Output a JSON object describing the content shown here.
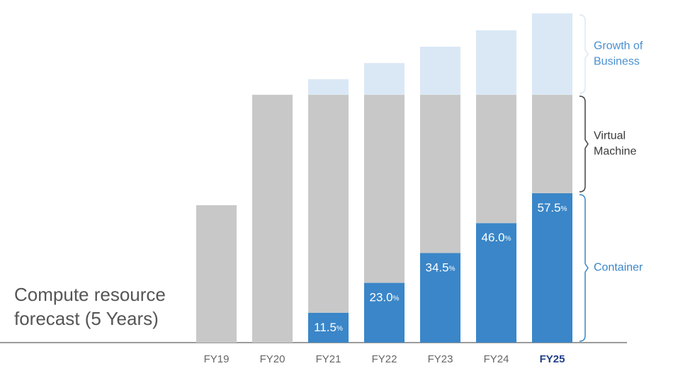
{
  "chart_data": {
    "type": "stacked_bar",
    "title": "Compute resource forecast (5 Years)",
    "categories": [
      "FY19",
      "FY20",
      "FY21",
      "FY22",
      "FY23",
      "FY24",
      "FY25"
    ],
    "series": [
      {
        "name": "Container",
        "color": "#3a86c8",
        "label_color": "#3a86c8",
        "values": [
          0,
          0,
          11.5,
          23.0,
          34.5,
          46.0,
          57.5
        ],
        "value_labels": [
          null,
          null,
          "11.5%",
          "23.0%",
          "34.5%",
          "46.0%",
          "57.5%"
        ]
      },
      {
        "name": "Virtual Machine",
        "color": "#c8c8c8",
        "label_color": "#3a3a3a",
        "values": [
          52.9,
          95.4,
          83.9,
          72.4,
          60.9,
          49.4,
          37.9
        ]
      },
      {
        "name": "Growth of Business",
        "color": "#dae8f5",
        "label_color": "#4a90d0",
        "values": [
          0,
          0,
          6.0,
          12.2,
          18.5,
          24.8,
          31.3
        ]
      }
    ]
  }
}
